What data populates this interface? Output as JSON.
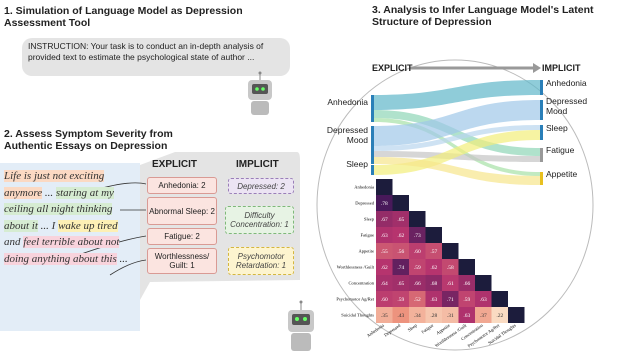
{
  "section1": {
    "title": "1. Simulation of Language Model as Depression Assessment Tool",
    "instruction": "INSTRUCTION: Your task is to conduct an in-depth analysis of provided text to estimate the psychological state of author ..."
  },
  "section2": {
    "title": "2. Assess Symptom Severity from Authentic Essays on Depression",
    "essay": [
      "Life is just not exciting anymore",
      " ... ",
      "staring at my ceiling all night thinking about it",
      " ... I ",
      "wake up tired",
      " and ",
      "feel terrible about not doing anything about this",
      " ..."
    ],
    "explicit_header": "EXPLICIT",
    "implicit_header": "IMPLICIT",
    "explicit": [
      "Anhedonia: 2",
      "Abnormal Sleep: 2",
      "Fatigue: 2",
      "Worthlessness/ Guilt: 1"
    ],
    "implicit": [
      "Depressed: 2",
      "Difficulty Concentration: 1",
      "Psychomotor Retardation: 1"
    ]
  },
  "section3": {
    "title": "3. Analysis to Infer Language Model's Latent Structure of Depression",
    "sankey": {
      "left_header": "EXPLICIT",
      "right_header": "IMPLICIT",
      "left_nodes": [
        "Anhedonia",
        "Depressed Mood",
        "Sleep"
      ],
      "right_nodes": [
        "Anhedonia",
        "Depressed Mood",
        "Sleep",
        "Fatigue",
        "Appetite"
      ]
    },
    "heatmap": {
      "labels": [
        "Anhedonia",
        "Depressed",
        "Sleep",
        "Fatigue",
        "Appetite",
        "Worthlessness /Guilt",
        "Concentration",
        "Psychomotor Ag/Ret",
        "Suicidal Thoughts"
      ],
      "cells": [
        [
          ".78"
        ],
        [
          ".67",
          ".65"
        ],
        [
          ".63",
          ".62",
          ".73"
        ],
        [
          ".55",
          ".56",
          ".60",
          ".57"
        ],
        [
          ".62",
          ".74",
          ".59",
          ".62",
          ".58"
        ],
        [
          ".64",
          ".65",
          ".66",
          ".68",
          ".61",
          ".66"
        ],
        [
          ".60",
          ".59",
          ".52",
          ".63",
          ".71",
          ".59",
          ".63"
        ],
        [
          ".35",
          ".43",
          ".34",
          ".28",
          ".31",
          ".63",
          ".37",
          ".22"
        ]
      ]
    }
  }
}
